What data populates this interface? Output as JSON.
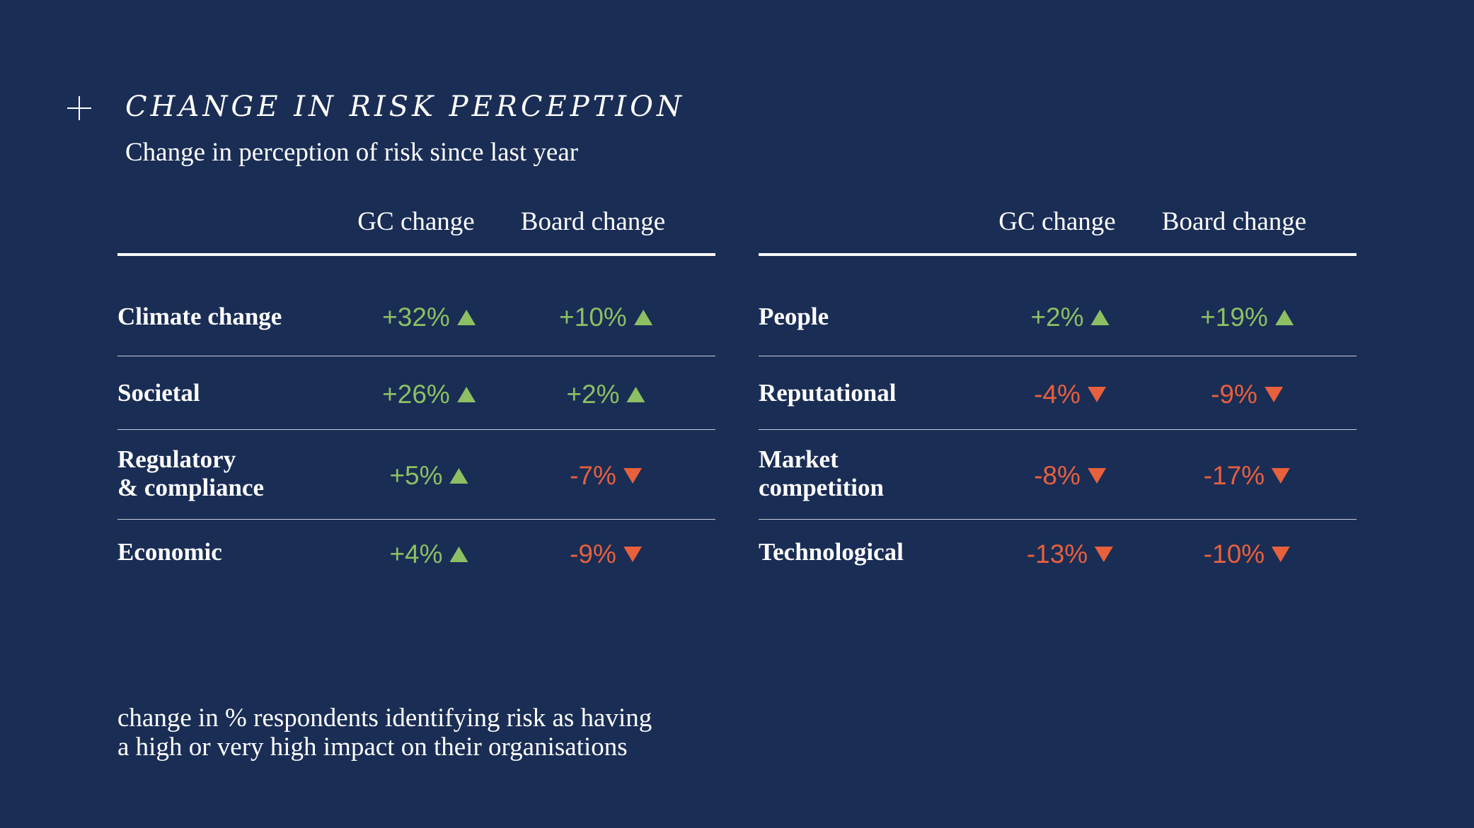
{
  "header": {
    "icon": "plus-icon",
    "title": "CHANGE IN RISK PERCEPTION",
    "subtitle": "Change in perception of risk since last year"
  },
  "colors": {
    "background": "#1a2d55",
    "increase": "#8cc063",
    "decrease": "#e8603c"
  },
  "columns": {
    "gc": "GC change",
    "board": "Board change"
  },
  "left_table": [
    {
      "label": "Climate change",
      "gc": "+32%",
      "gc_dir": "up",
      "board": "+10%",
      "board_dir": "up"
    },
    {
      "label": "Societal",
      "gc": "+26%",
      "gc_dir": "up",
      "board": "+2%",
      "board_dir": "up"
    },
    {
      "label": "Regulatory",
      "label2": "& compliance",
      "gc": "+5%",
      "gc_dir": "up",
      "board": "-7%",
      "board_dir": "down"
    },
    {
      "label": "Economic",
      "gc": "+4%",
      "gc_dir": "up",
      "board": "-9%",
      "board_dir": "down"
    }
  ],
  "right_table": [
    {
      "label": "People",
      "gc": "+2%",
      "gc_dir": "up",
      "board": "+19%",
      "board_dir": "up"
    },
    {
      "label": "Reputational",
      "gc": "-4%",
      "gc_dir": "down",
      "board": "-9%",
      "board_dir": "down"
    },
    {
      "label": "Market",
      "label2": "competition",
      "gc": "-8%",
      "gc_dir": "down",
      "board": "-17%",
      "board_dir": "down"
    },
    {
      "label": "Technological",
      "gc": "-13%",
      "gc_dir": "down",
      "board": "-10%",
      "board_dir": "down"
    }
  ],
  "footnote": {
    "line1": "change in % respondents identifying risk as having",
    "line2": "a high or very high impact on their organisations"
  }
}
